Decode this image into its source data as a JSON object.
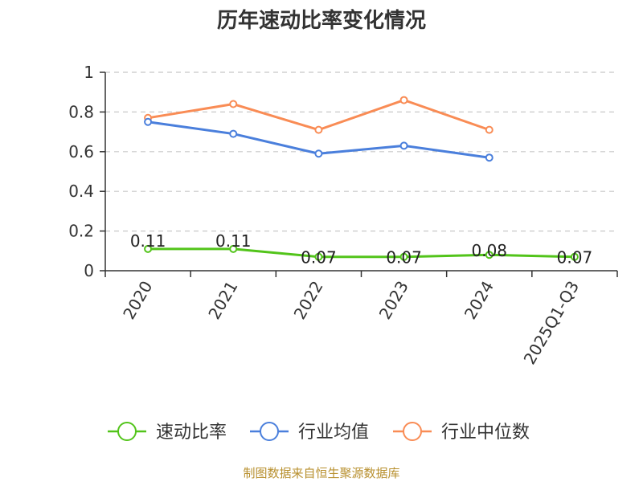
{
  "chart_data": {
    "type": "line",
    "title": "历年速动比率变化情况",
    "categories": [
      "2020",
      "2021",
      "2022",
      "2023",
      "2024",
      "2025Q1-Q3"
    ],
    "ylim": [
      0,
      1
    ],
    "yticks": [
      "0",
      "0.2",
      "0.4",
      "0.6",
      "0.8",
      "1"
    ],
    "ytick_values": [
      0,
      0.2,
      0.4,
      0.6,
      0.8,
      1
    ],
    "grid": true,
    "legend_position": "bottom",
    "series": [
      {
        "name": "速动比率",
        "color": "#52c41a",
        "values": [
          0.11,
          0.11,
          0.07,
          0.07,
          0.08,
          0.07
        ],
        "labels": [
          "0.11",
          "0.11",
          "0.07",
          "0.07",
          "0.08",
          "0.07"
        ]
      },
      {
        "name": "行业均值",
        "color": "#4a7fdc",
        "values": [
          0.75,
          0.69,
          0.59,
          0.63,
          0.57,
          null
        ]
      },
      {
        "name": "行业中位数",
        "color": "#f98c55",
        "values": [
          0.77,
          0.84,
          0.71,
          0.86,
          0.71,
          null
        ]
      }
    ]
  },
  "source": "制图数据来自恒生聚源数据库"
}
